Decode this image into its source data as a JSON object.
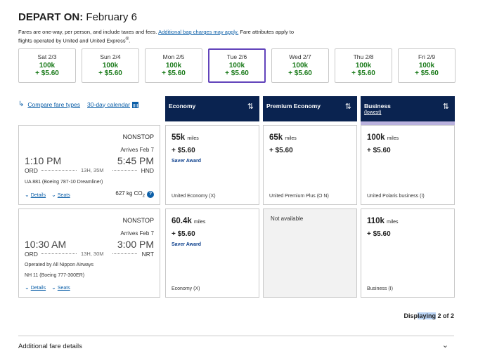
{
  "header": {
    "title_prefix": "DEPART ON:",
    "title_date": "February 6"
  },
  "notice": {
    "text_a": "Fares are one-way, per person, and include taxes and fees.",
    "link": "Additional bag charges may apply.",
    "text_b": "Fare attributes apply to flights operated by United and United Express",
    "reg": "®",
    "end": "."
  },
  "dates": [
    {
      "day": "Sat 2/3",
      "miles": "100k",
      "price": "+ $5.60"
    },
    {
      "day": "Sun 2/4",
      "miles": "100k",
      "price": "+ $5.60"
    },
    {
      "day": "Mon 2/5",
      "miles": "100k",
      "price": "+ $5.60"
    },
    {
      "day": "Tue 2/6",
      "miles": "100k",
      "price": "+ $5.60"
    },
    {
      "day": "Wed 2/7",
      "miles": "100k",
      "price": "+ $5.60"
    },
    {
      "day": "Thu 2/8",
      "miles": "100k",
      "price": "+ $5.60"
    },
    {
      "day": "Fri 2/9",
      "miles": "100k",
      "price": "+ $5.60"
    }
  ],
  "links": {
    "compare": "Compare fare types",
    "calendar": "30-day calendar"
  },
  "columns": {
    "economy": "Economy",
    "premium": "Premium Economy",
    "business": "Business",
    "business_sub": "(lowest)"
  },
  "flights": [
    {
      "nonstop": "NONSTOP",
      "arrives": "Arrives Feb 7",
      "dep_time": "1:10 PM",
      "arr_time": "5:45 PM",
      "origin": "ORD",
      "duration": "13H, 35M",
      "dest": "HND",
      "info1": "UA 881 (Boeing 787-10 Dreamliner)",
      "details": "Details",
      "seats": "Seats",
      "co2": "627 kg CO",
      "co2_sub": "2",
      "fares": {
        "economy": {
          "miles": "55k",
          "unit": "miles",
          "tax": "+ $5.60",
          "saver": "Saver Award",
          "cabin": "United Economy (X)"
        },
        "premium": {
          "miles": "65k",
          "unit": "miles",
          "tax": "+ $5.60",
          "cabin": "United Premium Plus (O N)"
        },
        "business": {
          "miles": "100k",
          "unit": "miles",
          "tax": "+ $5.60",
          "cabin": "United Polaris business (I)"
        }
      }
    },
    {
      "nonstop": "NONSTOP",
      "arrives": "Arrives Feb 7",
      "dep_time": "10:30 AM",
      "arr_time": "3:00 PM",
      "origin": "ORD",
      "duration": "13H, 30M",
      "dest": "NRT",
      "info1": "Operated by All Nippon Airways",
      "info2": "NH 11 (Boeing 777-300ER)",
      "details": "Details",
      "seats": "Seats",
      "fares": {
        "economy": {
          "miles": "60.4k",
          "unit": "miles",
          "tax": "+ $5.60",
          "saver": "Saver Award",
          "cabin": "Economy (X)"
        },
        "premium": {
          "na": "Not available"
        },
        "business": {
          "miles": "110k",
          "unit": "miles",
          "tax": "+ $5.60",
          "cabin": "Business (I)"
        }
      }
    }
  ],
  "footer": {
    "display_a": "Disp",
    "display_hl": "laying",
    "display_b": " 2 of 2",
    "additional": "Additional fare details"
  },
  "colors": {
    "header_navy": "#0a2350",
    "accent_purple": "#6244bb",
    "price_green": "#1a7a1a",
    "link_blue": "#0c5fa8"
  }
}
